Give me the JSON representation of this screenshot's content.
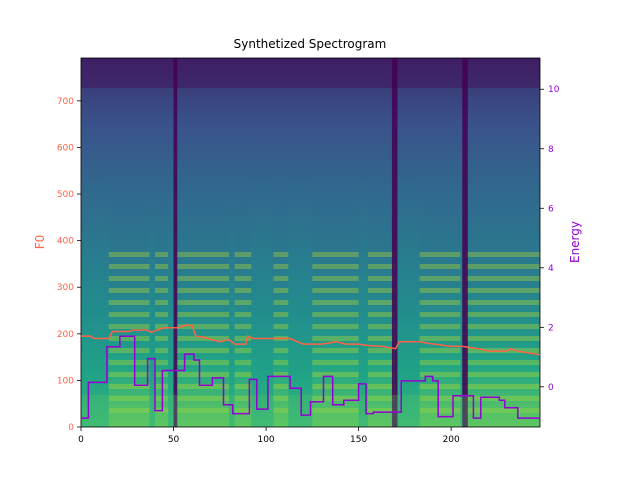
{
  "chart_data": {
    "type": "line",
    "title": "Synthetized Spectrogram",
    "background": "spectrogram (viridis colormap)",
    "x": {
      "xlim": [
        0,
        248
      ],
      "ticks": [
        0,
        50,
        100,
        150,
        200
      ]
    },
    "y_left": {
      "label": "F0",
      "color": "#ff6347",
      "ylim": [
        0,
        792
      ],
      "ticks": [
        0,
        100,
        200,
        300,
        400,
        500,
        600,
        700
      ]
    },
    "y_right": {
      "label": "Energy",
      "color": "#9400d3",
      "ylim": [
        -1.35,
        11.05
      ],
      "ticks": [
        0,
        2,
        4,
        6,
        8,
        10
      ]
    },
    "series": [
      {
        "axis": "left",
        "color": "#ff6347",
        "x": [
          0,
          5,
          7,
          15,
          17,
          26,
          28,
          36,
          38,
          41,
          45,
          53,
          56,
          60,
          62,
          66,
          70,
          75,
          80,
          83,
          89,
          90,
          93,
          100,
          113,
          117,
          120,
          130,
          138,
          143,
          150,
          155,
          163,
          170,
          172,
          183,
          187,
          200,
          206,
          215,
          220,
          230,
          232,
          236,
          248
        ],
        "y": [
          195,
          195,
          190,
          190,
          205,
          205,
          208,
          208,
          203,
          208,
          213,
          213,
          218,
          218,
          195,
          193,
          188,
          183,
          188,
          178,
          178,
          195,
          190,
          190,
          190,
          183,
          178,
          178,
          183,
          178,
          178,
          175,
          173,
          168,
          183,
          183,
          180,
          173,
          173,
          168,
          163,
          163,
          168,
          163,
          155
        ]
      },
      {
        "axis": "right",
        "color": "#9400d3",
        "x": [
          0,
          4,
          4,
          14,
          14,
          21,
          21,
          29,
          29,
          36,
          36,
          40,
          40,
          44,
          44,
          56,
          56,
          61,
          61,
          64,
          64,
          71,
          71,
          77,
          77,
          82,
          82,
          91,
          91,
          95,
          95,
          101,
          101,
          113,
          113,
          119,
          119,
          124,
          124,
          131,
          131,
          136,
          136,
          142,
          142,
          150,
          150,
          154,
          154,
          158,
          158,
          173,
          173,
          186,
          186,
          190,
          190,
          193,
          193,
          201,
          201,
          212,
          212,
          216,
          216,
          226,
          226,
          229,
          229,
          236,
          236,
          240,
          240,
          243,
          243,
          248
        ],
        "y": [
          -1.05,
          -1.05,
          0.15,
          0.15,
          1.35,
          1.35,
          1.7,
          1.7,
          0.05,
          0.05,
          0.95,
          0.95,
          -0.8,
          -0.8,
          0.55,
          0.55,
          1.1,
          1.1,
          0.9,
          0.9,
          0.05,
          0.05,
          0.3,
          0.3,
          -0.6,
          -0.6,
          -0.9,
          -0.9,
          0.25,
          0.25,
          -0.75,
          -0.75,
          0.35,
          0.35,
          -0.05,
          -0.05,
          -0.95,
          -0.95,
          -0.5,
          -0.5,
          0.35,
          0.35,
          -0.6,
          -0.6,
          -0.45,
          -0.45,
          0.1,
          0.1,
          -0.9,
          -0.9,
          -0.85,
          -0.85,
          0.2,
          0.2,
          0.35,
          0.35,
          0.2,
          0.2,
          -1.0,
          -1.0,
          -0.3,
          -0.3,
          -1.05,
          -1.05,
          -0.35,
          -0.35,
          -0.45,
          -0.45,
          -0.7,
          -0.7,
          -1.05,
          -1.05,
          -1.05,
          -1.05,
          -1.05,
          -1.05
        ]
      }
    ],
    "voiced_segments_x": [
      [
        15,
        37
      ],
      [
        40,
        47
      ],
      [
        52,
        80
      ],
      [
        83,
        92
      ],
      [
        104,
        112
      ],
      [
        125,
        150
      ],
      [
        155,
        170
      ],
      [
        183,
        205
      ],
      [
        208,
        248
      ]
    ],
    "silence_gaps_x": [
      [
        50,
        52
      ],
      [
        168,
        171
      ],
      [
        206,
        209
      ]
    ]
  }
}
